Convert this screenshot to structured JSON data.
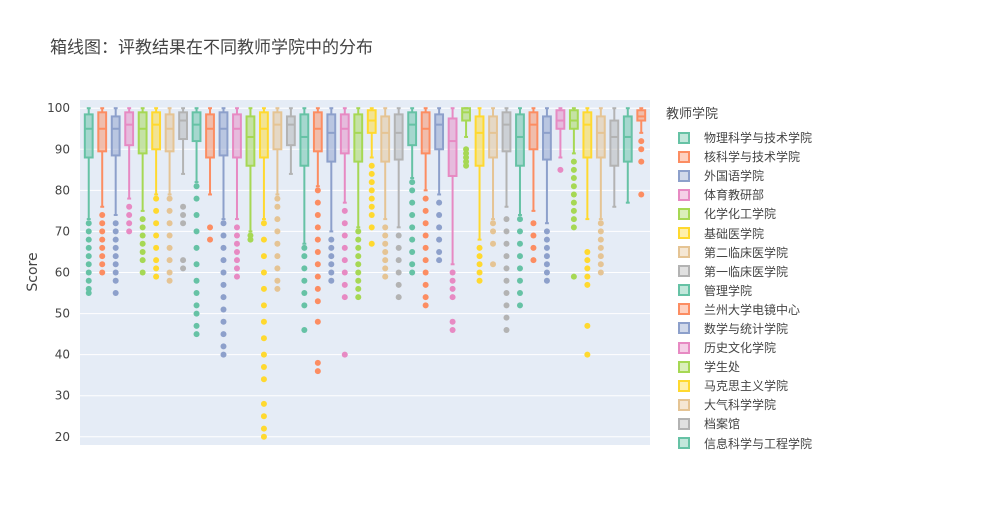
{
  "chart_data": {
    "type": "box",
    "title": "箱线图：评教结果在不同教师学院中的分布",
    "ylabel": "Score",
    "xlabel": "",
    "ylim": [
      18,
      102
    ],
    "yticks": [
      20,
      30,
      40,
      50,
      60,
      70,
      80,
      90,
      100
    ],
    "grid": true,
    "legend_title": "教师学院",
    "legend_position": "right",
    "palette": [
      "#66c2a5",
      "#fc8d62",
      "#8da0cb",
      "#e78ac3",
      "#a6d854",
      "#ffd92f",
      "#e5c494",
      "#b3b3b3"
    ],
    "legend": [
      {
        "name": "物理科学与技术学院",
        "color": "#66c2a5"
      },
      {
        "name": "核科学与技术学院",
        "color": "#fc8d62"
      },
      {
        "name": "外国语学院",
        "color": "#8da0cb"
      },
      {
        "name": "体育教研部",
        "color": "#e78ac3"
      },
      {
        "name": "化学化工学院",
        "color": "#a6d854"
      },
      {
        "name": "基础医学院",
        "color": "#ffd92f"
      },
      {
        "name": "第二临床医学院",
        "color": "#e5c494"
      },
      {
        "name": "第一临床医学院",
        "color": "#b3b3b3"
      },
      {
        "name": "管理学院",
        "color": "#66c2a5"
      },
      {
        "name": "兰州大学电镜中心",
        "color": "#fc8d62"
      },
      {
        "name": "数学与统计学院",
        "color": "#8da0cb"
      },
      {
        "name": "历史文化学院",
        "color": "#e78ac3"
      },
      {
        "name": "学生处",
        "color": "#a6d854"
      },
      {
        "name": "马克思主义学院",
        "color": "#ffd92f"
      },
      {
        "name": "大气科学学院",
        "color": "#e5c494"
      },
      {
        "name": "档案馆",
        "color": "#b3b3b3"
      },
      {
        "name": "信息科学与工程学院",
        "color": "#66c2a5"
      }
    ],
    "boxes": [
      {
        "q1": 88,
        "median": 95,
        "q3": 98.5,
        "lf": 73,
        "uf": 100,
        "out": [
          55,
          56,
          58,
          60,
          62,
          64,
          66,
          68,
          70,
          72
        ]
      },
      {
        "q1": 89.5,
        "median": 95,
        "q3": 99,
        "lf": 76,
        "uf": 100,
        "out": [
          60,
          62,
          64,
          66,
          68,
          70,
          72,
          74
        ]
      },
      {
        "q1": 88.5,
        "median": 95,
        "q3": 98,
        "lf": 74,
        "uf": 100,
        "out": [
          55,
          58,
          60,
          62,
          64,
          66,
          68,
          70,
          72
        ]
      },
      {
        "q1": 91,
        "median": 96,
        "q3": 99,
        "lf": 78,
        "uf": 100,
        "out": [
          70,
          72,
          74,
          76
        ]
      },
      {
        "q1": 89,
        "median": 95,
        "q3": 99,
        "lf": 75,
        "uf": 100,
        "out": [
          60,
          63,
          65,
          67,
          69,
          71,
          73
        ]
      },
      {
        "q1": 90,
        "median": 96,
        "q3": 99,
        "lf": 79,
        "uf": 100,
        "out": [
          59,
          61,
          63,
          66,
          69,
          72,
          75,
          78
        ]
      },
      {
        "q1": 89.5,
        "median": 95,
        "q3": 98.5,
        "lf": 79,
        "uf": 100,
        "out": [
          58,
          60,
          63,
          66,
          69,
          72,
          75,
          78
        ]
      },
      {
        "q1": 92.5,
        "median": 97,
        "q3": 99,
        "lf": 84,
        "uf": 100,
        "out": [
          61,
          63,
          72,
          74,
          76
        ]
      },
      {
        "q1": 92,
        "median": 96,
        "q3": 99,
        "lf": 82,
        "uf": 100,
        "out": [
          45,
          47,
          50,
          52,
          55,
          58,
          62,
          66,
          70,
          74,
          78,
          81
        ]
      },
      {
        "q1": 88,
        "median": 95,
        "q3": 98.5,
        "lf": 79,
        "uf": 100,
        "out": [
          68,
          71
        ]
      },
      {
        "q1": 88.5,
        "median": 95,
        "q3": 99,
        "lf": 73,
        "uf": 100,
        "out": [
          40,
          42,
          45,
          48,
          51,
          54,
          57,
          60,
          63,
          66,
          69,
          72
        ]
      },
      {
        "q1": 88,
        "median": 95,
        "q3": 98.5,
        "lf": 73,
        "uf": 100,
        "out": [
          59,
          61,
          63,
          65,
          67,
          69,
          71
        ]
      },
      {
        "q1": 86,
        "median": 93,
        "q3": 98,
        "lf": 70,
        "uf": 100,
        "out": [
          68,
          69
        ]
      },
      {
        "q1": 88,
        "median": 95,
        "q3": 99,
        "lf": 73,
        "uf": 100,
        "out": [
          20,
          22,
          25,
          28,
          34,
          37,
          40,
          44,
          48,
          52,
          56,
          60,
          64,
          68,
          72
        ]
      },
      {
        "q1": 90,
        "median": 96,
        "q3": 99,
        "lf": 79,
        "uf": 100,
        "out": [
          56,
          58,
          61,
          64,
          67,
          70,
          73,
          76,
          78
        ]
      },
      {
        "q1": 91,
        "median": 96,
        "q3": 98,
        "lf": 84,
        "uf": 100,
        "out": []
      },
      {
        "q1": 86,
        "median": 93,
        "q3": 98.5,
        "lf": 67,
        "uf": 100,
        "out": [
          46,
          52,
          55,
          58,
          61,
          64,
          66
        ]
      },
      {
        "q1": 89.5,
        "median": 95,
        "q3": 99,
        "lf": 81,
        "uf": 100,
        "out": [
          36,
          38,
          48,
          53,
          56,
          59,
          62,
          65,
          68,
          71,
          74,
          77,
          80
        ]
      },
      {
        "q1": 87,
        "median": 94,
        "q3": 98.5,
        "lf": 70,
        "uf": 100,
        "out": [
          58,
          60,
          62,
          64,
          66,
          68
        ]
      },
      {
        "q1": 89,
        "median": 95,
        "q3": 98.5,
        "lf": 77,
        "uf": 100,
        "out": [
          40,
          54,
          57,
          60,
          63,
          66,
          69,
          72,
          75
        ]
      },
      {
        "q1": 87,
        "median": 94,
        "q3": 98.5,
        "lf": 71,
        "uf": 100,
        "out": [
          54,
          56,
          58,
          60,
          62,
          64,
          66,
          68,
          70
        ]
      },
      {
        "q1": 94,
        "median": 97,
        "q3": 99.5,
        "lf": 88,
        "uf": 100,
        "out": [
          67,
          71,
          74,
          76,
          78,
          80,
          82,
          84,
          86
        ]
      },
      {
        "q1": 87,
        "median": 94,
        "q3": 98,
        "lf": 73,
        "uf": 100,
        "out": [
          59,
          61,
          63,
          65,
          67,
          69,
          71
        ]
      },
      {
        "q1": 87.5,
        "median": 94,
        "q3": 98.5,
        "lf": 71,
        "uf": 100,
        "out": [
          54,
          57,
          60,
          63,
          66,
          69
        ]
      },
      {
        "q1": 91,
        "median": 96,
        "q3": 99,
        "lf": 83,
        "uf": 100,
        "out": [
          60,
          62,
          65,
          68,
          71,
          74,
          77,
          80,
          82
        ]
      },
      {
        "q1": 89,
        "median": 95,
        "q3": 99,
        "lf": 80,
        "uf": 100,
        "out": [
          52,
          54,
          57,
          60,
          63,
          66,
          69,
          72,
          75,
          78
        ]
      },
      {
        "q1": 90,
        "median": 96,
        "q3": 98.5,
        "lf": 79,
        "uf": 100,
        "out": [
          63,
          65,
          68,
          71,
          74,
          77
        ]
      },
      {
        "q1": 83.5,
        "median": 92,
        "q3": 97.5,
        "lf": 62,
        "uf": 100,
        "out": [
          46,
          48,
          54,
          56,
          58,
          60
        ]
      },
      {
        "q1": 97,
        "median": 99,
        "q3": 100,
        "lf": 93,
        "uf": 100,
        "out": [
          86,
          87,
          88,
          89,
          90
        ]
      },
      {
        "q1": 86,
        "median": 94,
        "q3": 98,
        "lf": 68,
        "uf": 100,
        "out": [
          58,
          60,
          62,
          64,
          66
        ]
      },
      {
        "q1": 88,
        "median": 94,
        "q3": 98,
        "lf": 73,
        "uf": 100,
        "out": [
          62,
          67,
          70,
          72
        ]
      },
      {
        "q1": 89.5,
        "median": 96,
        "q3": 99,
        "lf": 76,
        "uf": 100,
        "out": [
          46,
          49,
          52,
          55,
          58,
          61,
          64,
          67,
          70,
          73
        ]
      },
      {
        "q1": 86,
        "median": 93,
        "q3": 98.5,
        "lf": 74,
        "uf": 100,
        "out": [
          52,
          55,
          58,
          61,
          64,
          67,
          70,
          73
        ]
      },
      {
        "q1": 90,
        "median": 96,
        "q3": 99,
        "lf": 75,
        "uf": 100,
        "out": [
          63,
          66,
          69,
          72
        ]
      },
      {
        "q1": 87.5,
        "median": 94,
        "q3": 98,
        "lf": 72,
        "uf": 100,
        "out": [
          58,
          60,
          62,
          64,
          66,
          68,
          70
        ]
      },
      {
        "q1": 95,
        "median": 97,
        "q3": 99.5,
        "lf": 88,
        "uf": 100,
        "out": [
          85
        ]
      },
      {
        "q1": 95,
        "median": 97,
        "q3": 99.5,
        "lf": 89,
        "uf": 100,
        "out": [
          59,
          71,
          73,
          75,
          77,
          79,
          81,
          83,
          85,
          87
        ]
      },
      {
        "q1": 88,
        "median": 96,
        "q3": 99,
        "lf": 73,
        "uf": 100,
        "out": [
          40,
          47,
          57,
          59,
          61,
          63,
          65
        ]
      },
      {
        "q1": 88,
        "median": 94,
        "q3": 98,
        "lf": 73,
        "uf": 100,
        "out": [
          60,
          62,
          64,
          66,
          68,
          70,
          72
        ]
      },
      {
        "q1": 86,
        "median": 93,
        "q3": 97,
        "lf": 76,
        "uf": 100,
        "out": []
      },
      {
        "q1": 87,
        "median": 93,
        "q3": 98,
        "lf": 77,
        "uf": 100,
        "out": []
      },
      {
        "q1": 97,
        "median": 98,
        "q3": 99.5,
        "lf": 94,
        "uf": 100,
        "out": [
          79,
          87,
          90,
          92
        ]
      }
    ]
  }
}
